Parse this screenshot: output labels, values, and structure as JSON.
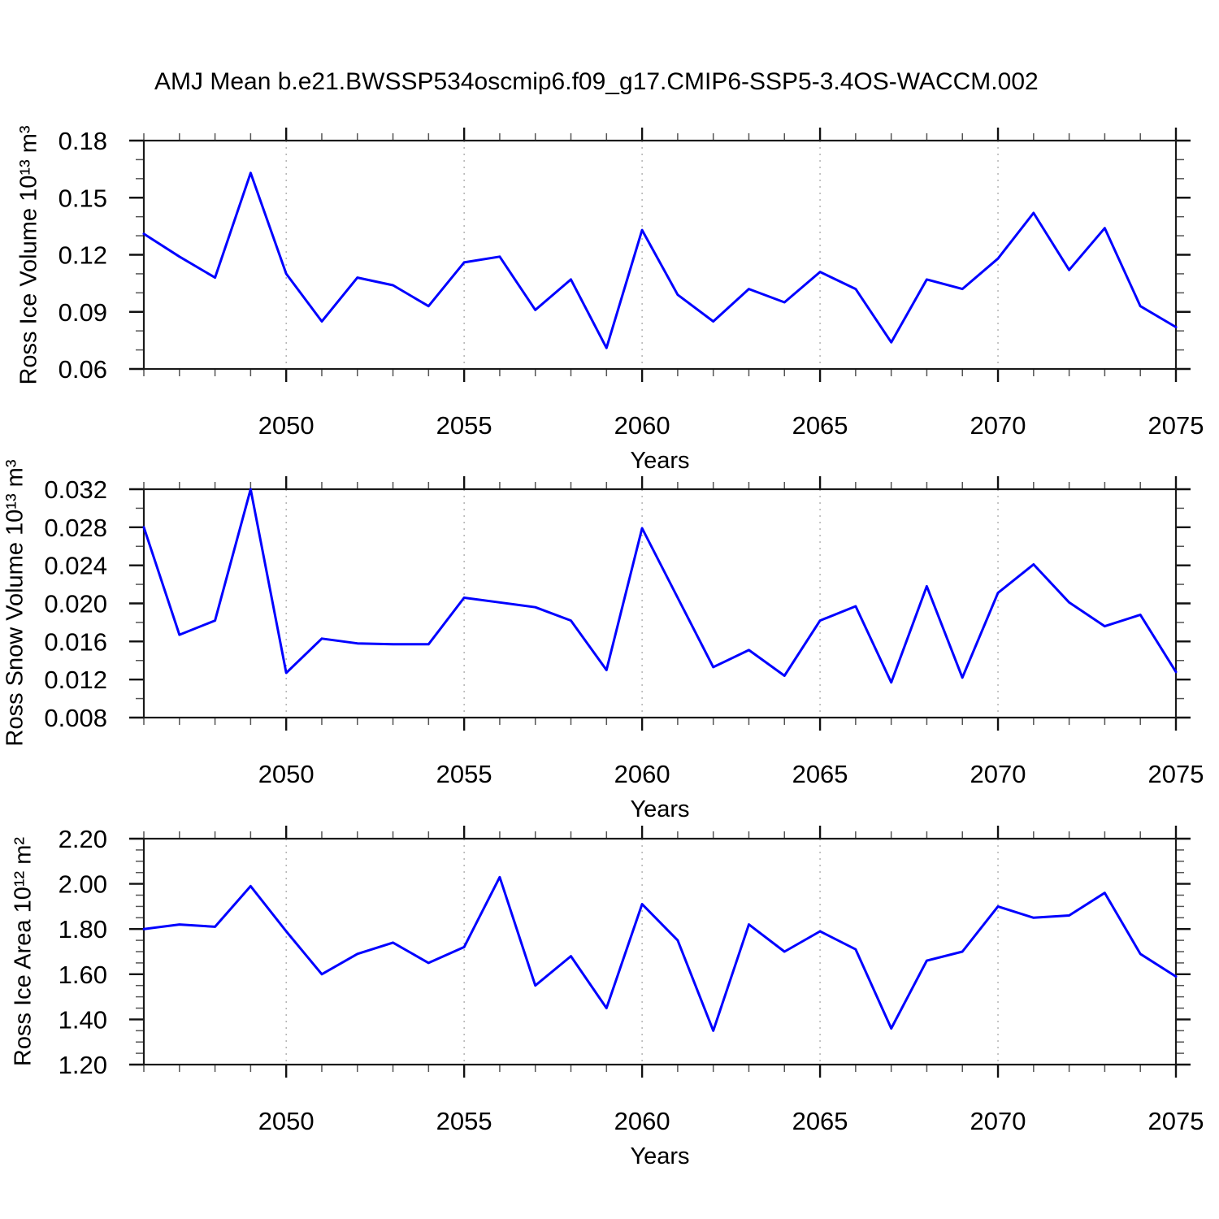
{
  "title": "AMJ Mean b.e21.BWSSP534oscmip6.f09_g17.CMIP6-SSP5-3.4OS-WACCM.002",
  "figure": {
    "background": "#ffffff",
    "line_color": "#0000ff",
    "grid_color": "#a0a0a0",
    "axis_color": "#1a1a1a",
    "major_tick_color": "#111111",
    "minor_tick_color": "#555555",
    "text_color": "#000000"
  },
  "x_axis": {
    "label": "Years",
    "range": [
      2046,
      2075
    ],
    "major_ticks": [
      2050,
      2055,
      2060,
      2065,
      2070,
      2075
    ],
    "major_tick_labels": [
      "2050",
      "2055",
      "2060",
      "2065",
      "2070",
      "2075"
    ],
    "minor_step": 1,
    "grid_years": [
      2050,
      2055,
      2060,
      2065,
      2070
    ],
    "grid_style": "vertical-dashed"
  },
  "chart_data": [
    {
      "type": "line",
      "key": "ice-volume",
      "ylabel": "Ross Ice Volume 10¹³ m³",
      "xlabel": "Years",
      "ylim": [
        0.06,
        0.18
      ],
      "yticks": [
        0.06,
        0.09,
        0.12,
        0.15,
        0.18
      ],
      "ytick_labels": [
        "0.06",
        "0.09",
        "0.12",
        "0.15",
        "0.18"
      ],
      "y_minor_step": 0.01,
      "legend": "none",
      "x": [
        2046,
        2047,
        2048,
        2049,
        2050,
        2051,
        2052,
        2053,
        2054,
        2055,
        2056,
        2057,
        2058,
        2059,
        2060,
        2061,
        2062,
        2063,
        2064,
        2065,
        2066,
        2067,
        2068,
        2069,
        2070,
        2071,
        2072,
        2073,
        2074,
        2075
      ],
      "values": [
        0.131,
        0.119,
        0.108,
        0.163,
        0.11,
        0.085,
        0.108,
        0.104,
        0.093,
        0.116,
        0.119,
        0.091,
        0.107,
        0.071,
        0.133,
        0.099,
        0.085,
        0.102,
        0.095,
        0.111,
        0.102,
        0.074,
        0.107,
        0.102,
        0.118,
        0.142,
        0.112,
        0.134,
        0.093,
        0.082
      ]
    },
    {
      "type": "line",
      "key": "snow-volume",
      "ylabel": "Ross Snow Volume 10¹³ m³",
      "xlabel": "Years",
      "ylim": [
        0.008,
        0.032
      ],
      "yticks": [
        0.008,
        0.012,
        0.016,
        0.02,
        0.024,
        0.028,
        0.032
      ],
      "ytick_labels": [
        "0.008",
        "0.012",
        "0.016",
        "0.020",
        "0.024",
        "0.028",
        "0.032"
      ],
      "y_minor_step": 0.002,
      "legend": "none",
      "x": [
        2046,
        2047,
        2048,
        2049,
        2050,
        2051,
        2052,
        2053,
        2054,
        2055,
        2056,
        2057,
        2058,
        2059,
        2060,
        2061,
        2062,
        2063,
        2064,
        2065,
        2066,
        2067,
        2068,
        2069,
        2070,
        2071,
        2072,
        2073,
        2074,
        2075
      ],
      "values": [
        0.028,
        0.0167,
        0.0182,
        0.032,
        0.0127,
        0.0163,
        0.0158,
        0.0157,
        0.0157,
        0.0206,
        0.0201,
        0.0196,
        0.0182,
        0.013,
        0.0279,
        0.0206,
        0.0133,
        0.0151,
        0.0124,
        0.0182,
        0.0197,
        0.0117,
        0.0218,
        0.0122,
        0.0211,
        0.0241,
        0.0201,
        0.0176,
        0.0188,
        0.0128
      ]
    },
    {
      "type": "line",
      "key": "ice-area",
      "ylabel": "Ross Ice Area 10¹² m²",
      "xlabel": "Years",
      "ylim": [
        1.2,
        2.2
      ],
      "yticks": [
        1.2,
        1.4,
        1.6,
        1.8,
        2.0,
        2.2
      ],
      "ytick_labels": [
        "1.20",
        "1.40",
        "1.60",
        "1.80",
        "2.00",
        "2.20"
      ],
      "y_minor_step": 0.05,
      "legend": "none",
      "x": [
        2046,
        2047,
        2048,
        2049,
        2050,
        2051,
        2052,
        2053,
        2054,
        2055,
        2056,
        2057,
        2058,
        2059,
        2060,
        2061,
        2062,
        2063,
        2064,
        2065,
        2066,
        2067,
        2068,
        2069,
        2070,
        2071,
        2072,
        2073,
        2074,
        2075
      ],
      "values": [
        1.8,
        1.82,
        1.81,
        1.99,
        1.79,
        1.6,
        1.69,
        1.74,
        1.65,
        1.72,
        2.03,
        1.55,
        1.68,
        1.45,
        1.91,
        1.75,
        1.35,
        1.82,
        1.7,
        1.79,
        1.71,
        1.36,
        1.66,
        1.7,
        1.9,
        1.85,
        1.86,
        1.96,
        1.69,
        1.59
      ]
    }
  ]
}
